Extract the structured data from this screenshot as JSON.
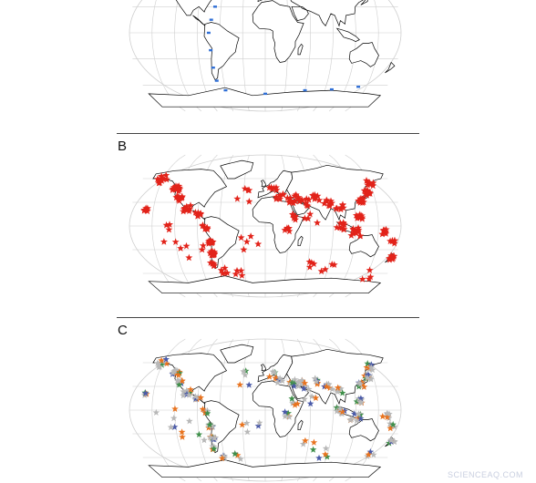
{
  "panels": [
    {
      "id": "A",
      "label": ""
    },
    {
      "id": "B",
      "label": "B"
    },
    {
      "id": "C",
      "label": "C"
    }
  ],
  "colors": {
    "panel_a_marks": "#2f6fd6",
    "panel_b_stars": "#e2231a",
    "panel_c_gray": "#b8b8b8",
    "panel_c_orange": "#e8731f",
    "panel_c_green": "#3f8f4a",
    "panel_c_blue": "#4a5aa8",
    "graticule": "#cfcfcf",
    "coastline": "#000000"
  },
  "icons": {
    "marker": "star-icon"
  },
  "watermark": "SCIENCEAQ.COM"
}
